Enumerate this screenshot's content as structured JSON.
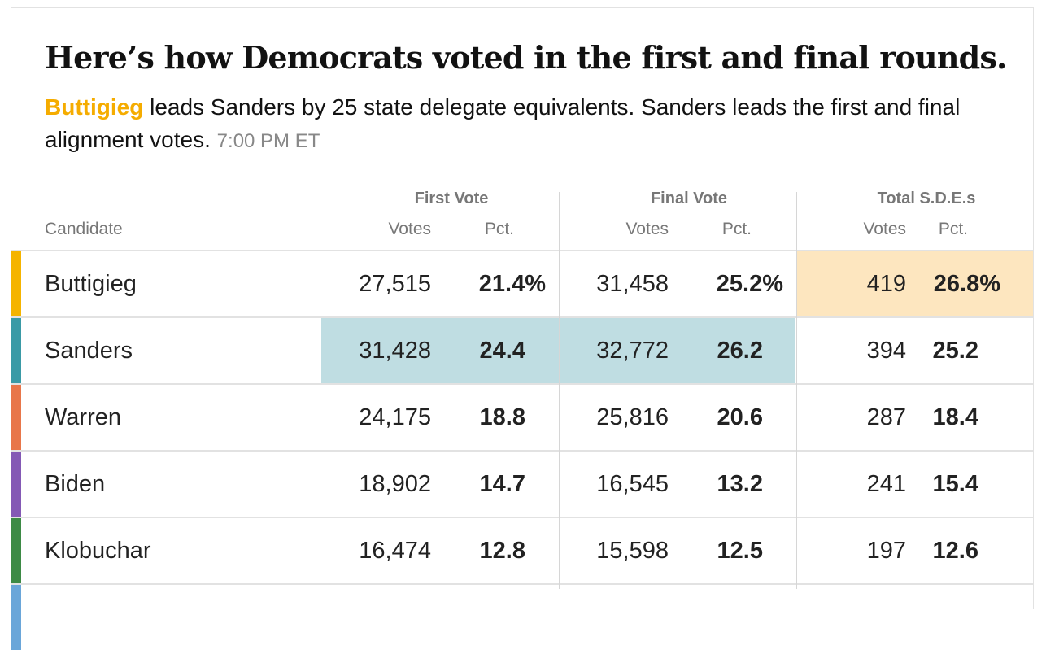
{
  "title": "Here’s how Democrats voted in the first and final rounds.",
  "summary": {
    "leader": "Buttigieg",
    "text": " leads Sanders by 25 state delegate equivalents. Sanders leads the first and final alignment votes.",
    "time": "7:00 PM ET"
  },
  "table": {
    "candidate_header": "Candidate",
    "groups": [
      "First Vote",
      "Final Vote",
      "Total S.D.E.s"
    ],
    "sub_votes": "Votes",
    "sub_pct": "Pct.",
    "rows": [
      {
        "name": "Buttigieg",
        "color": "#f5b400",
        "first_votes": "27,515",
        "first_pct": "21.4%",
        "final_votes": "31,458",
        "final_pct": "25.2%",
        "sde_votes": "419",
        "sde_pct": "26.8%"
      },
      {
        "name": "Sanders",
        "color": "#3a9aa6",
        "first_votes": "31,428",
        "first_pct": "24.4",
        "final_votes": "32,772",
        "final_pct": "26.2",
        "sde_votes": "394",
        "sde_pct": "25.2"
      },
      {
        "name": "Warren",
        "color": "#e8764a",
        "first_votes": "24,175",
        "first_pct": "18.8",
        "final_votes": "25,816",
        "final_pct": "20.6",
        "sde_votes": "287",
        "sde_pct": "18.4"
      },
      {
        "name": "Biden",
        "color": "#8459b5",
        "first_votes": "18,902",
        "first_pct": "14.7",
        "final_votes": "16,545",
        "final_pct": "13.2",
        "sde_votes": "241",
        "sde_pct": "15.4"
      },
      {
        "name": "Klobuchar",
        "color": "#3d8a45",
        "first_votes": "16,474",
        "first_pct": "12.8",
        "final_votes": "15,598",
        "final_pct": "12.5",
        "sde_votes": "197",
        "sde_pct": "12.6"
      }
    ]
  },
  "colors": {
    "first_final_leader_highlight": "#bfdde2",
    "sde_leader_highlight": "#fde6bf",
    "leader_text": "#f5ac00"
  }
}
